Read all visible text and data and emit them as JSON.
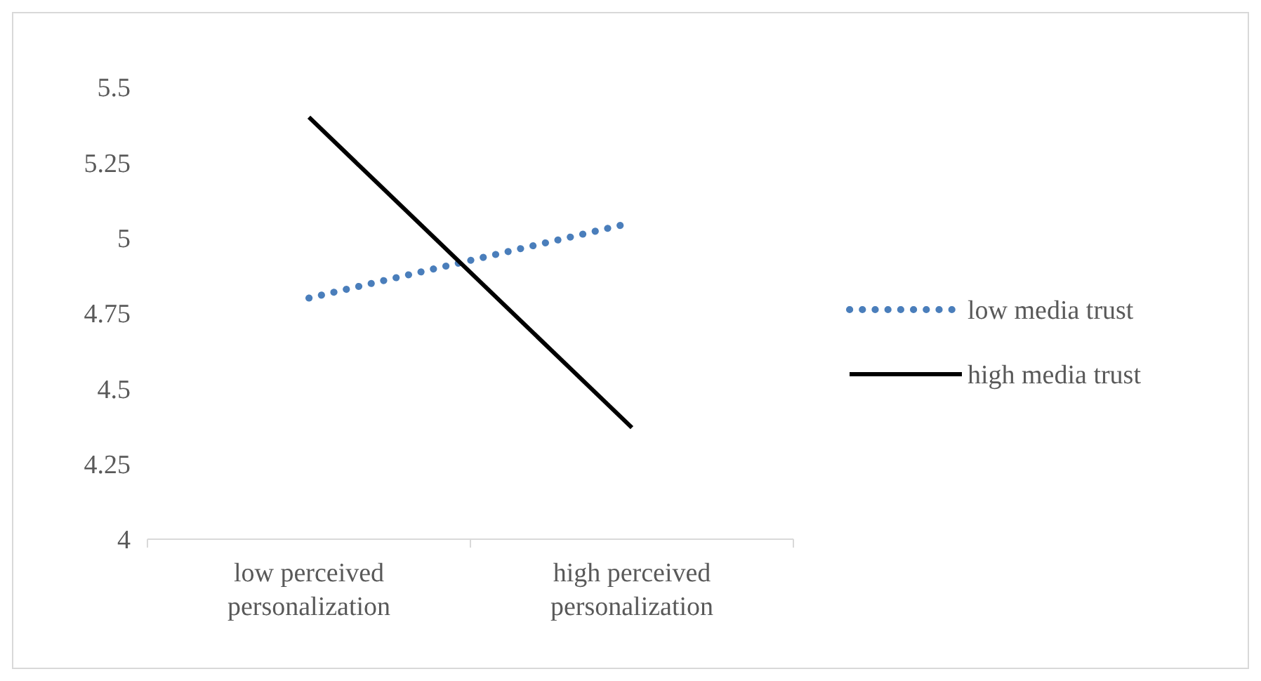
{
  "chart_data": {
    "type": "line",
    "categories": [
      "low perceived personalization",
      "high perceived personalization"
    ],
    "series": [
      {
        "name": "low media trust",
        "color": "#4a7ebb",
        "line_style": "dotted",
        "values": [
          4.8,
          5.05
        ]
      },
      {
        "name": "high media trust",
        "color": "#000000",
        "line_style": "solid",
        "values": [
          5.4,
          4.37
        ]
      }
    ],
    "ylim": [
      4,
      5.5
    ],
    "yticks": [
      4,
      4.25,
      4.5,
      4.75,
      5,
      5.25,
      5.5
    ],
    "legend": "right"
  }
}
